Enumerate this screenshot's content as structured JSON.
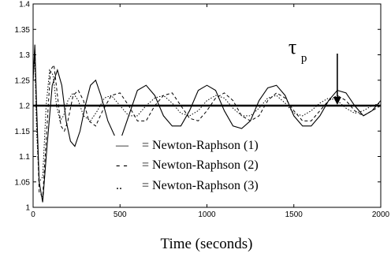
{
  "chart_data": {
    "type": "line",
    "title": "",
    "xlabel": "Time (seconds)",
    "ylabel": "",
    "xlim": [
      0,
      2000
    ],
    "ylim": [
      1.0,
      1.4
    ],
    "x_ticks": [
      "0",
      "500",
      "1000",
      "1500",
      "2000"
    ],
    "y_ticks": [
      "1",
      "1.05",
      "1.1",
      "1.15",
      "1.2",
      "1.25",
      "1.3",
      "1.35",
      "1.4"
    ],
    "grid": false,
    "reference_line": {
      "y": 1.2
    },
    "legend": {
      "placement": "lower-center",
      "entries": [
        {
          "marker": "—",
          "label": "= Newton-Raphson (1)"
        },
        {
          "marker": "- -",
          "label": "= Newton-Raphson (2)"
        },
        {
          "marker": "..",
          "label": "= Newton-Raphson (3)"
        }
      ]
    },
    "annotation": {
      "symbol": "τ",
      "subscript": "p",
      "x": 1750,
      "y": 1.2
    },
    "series": [
      {
        "style": "solid",
        "x": [
          0,
          10,
          20,
          35,
          55,
          80,
          110,
          140,
          165,
          190,
          215,
          240,
          270,
          300,
          330,
          360,
          390,
          430,
          470,
          510,
          550,
          600,
          650,
          700,
          750,
          800,
          850,
          900,
          950,
          1000,
          1050,
          1100,
          1150,
          1200,
          1250,
          1300,
          1350,
          1400,
          1450,
          1500,
          1550,
          1600,
          1650,
          1700,
          1750,
          1800,
          1850,
          1900,
          1950,
          2000
        ],
        "y": [
          1.25,
          1.32,
          1.2,
          1.05,
          1.01,
          1.12,
          1.24,
          1.27,
          1.24,
          1.17,
          1.13,
          1.12,
          1.15,
          1.2,
          1.24,
          1.25,
          1.22,
          1.17,
          1.14,
          1.14,
          1.18,
          1.23,
          1.24,
          1.22,
          1.18,
          1.16,
          1.16,
          1.19,
          1.23,
          1.24,
          1.23,
          1.19,
          1.16,
          1.155,
          1.17,
          1.21,
          1.235,
          1.24,
          1.22,
          1.18,
          1.16,
          1.16,
          1.18,
          1.21,
          1.23,
          1.225,
          1.2,
          1.18,
          1.19,
          1.21
        ]
      },
      {
        "style": "dashed",
        "x": [
          0,
          10,
          20,
          35,
          55,
          80,
          100,
          120,
          140,
          160,
          180,
          200,
          230,
          260,
          290,
          320,
          360,
          400,
          450,
          500,
          550,
          600,
          650,
          700,
          750,
          800,
          850,
          900,
          950,
          1000,
          1050,
          1100,
          1150,
          1200,
          1250,
          1300,
          1350,
          1400,
          1450,
          1500,
          1550,
          1600,
          1650,
          1700,
          1750,
          1800,
          1850,
          1900,
          1950,
          2000
        ],
        "y": [
          1.25,
          1.3,
          1.18,
          1.03,
          1.02,
          1.16,
          1.27,
          1.28,
          1.22,
          1.16,
          1.15,
          1.17,
          1.22,
          1.23,
          1.21,
          1.17,
          1.16,
          1.19,
          1.22,
          1.225,
          1.2,
          1.17,
          1.17,
          1.2,
          1.22,
          1.225,
          1.2,
          1.175,
          1.17,
          1.19,
          1.215,
          1.225,
          1.21,
          1.18,
          1.17,
          1.18,
          1.21,
          1.225,
          1.215,
          1.19,
          1.17,
          1.17,
          1.19,
          1.21,
          1.22,
          1.21,
          1.19,
          1.18,
          1.19,
          1.2
        ]
      },
      {
        "style": "dotted",
        "x": [
          0,
          10,
          20,
          35,
          55,
          75,
          95,
          115,
          135,
          155,
          175,
          200,
          230,
          260,
          290,
          330,
          370,
          410,
          450,
          500,
          550,
          600,
          650,
          700,
          750,
          800,
          850,
          900,
          950,
          1000,
          1050,
          1100,
          1150,
          1200,
          1250,
          1300,
          1350,
          1400,
          1450,
          1500,
          1550,
          1600,
          1650,
          1700,
          1750,
          1800,
          1850,
          1900,
          1950,
          2000
        ],
        "y": [
          1.25,
          1.3,
          1.15,
          1.05,
          1.06,
          1.2,
          1.27,
          1.26,
          1.2,
          1.17,
          1.18,
          1.21,
          1.225,
          1.21,
          1.18,
          1.17,
          1.19,
          1.215,
          1.22,
          1.2,
          1.18,
          1.18,
          1.2,
          1.215,
          1.22,
          1.205,
          1.185,
          1.18,
          1.19,
          1.21,
          1.22,
          1.215,
          1.195,
          1.18,
          1.18,
          1.195,
          1.215,
          1.22,
          1.205,
          1.185,
          1.18,
          1.19,
          1.205,
          1.215,
          1.21,
          1.195,
          1.185,
          1.19,
          1.2,
          1.205
        ]
      }
    ]
  }
}
